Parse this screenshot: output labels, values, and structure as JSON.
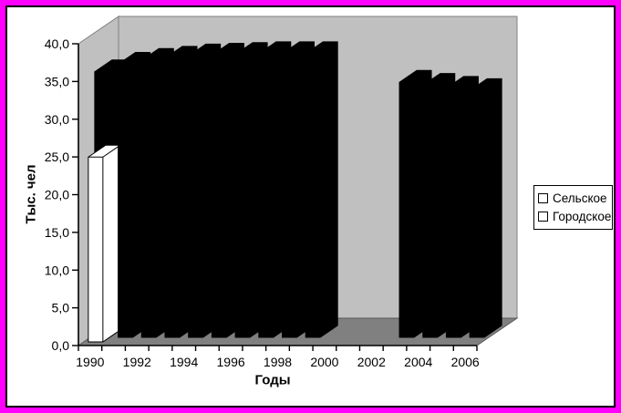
{
  "frame": {
    "border_color": "#FF00FF",
    "inner_line_color": "#000000"
  },
  "chart_data": {
    "type": "bar",
    "projection": "3d-column",
    "title": "",
    "xlabel": "Годы",
    "ylabel": "Тыс. чел",
    "ylim": [
      0,
      40
    ],
    "ytick_step": 5,
    "ytick_labels": [
      "0,0",
      "5,0",
      "10,0",
      "15,0",
      "20,0",
      "25,0",
      "30,0",
      "35,0",
      "40,0"
    ],
    "categories": [
      1990,
      1991,
      1992,
      1993,
      1994,
      1995,
      1996,
      1997,
      1998,
      1999,
      2000,
      2001,
      2002,
      2003,
      2004,
      2005,
      2006
    ],
    "xtick_labels_shown": [
      "1990",
      "1992",
      "1994",
      "1996",
      "1998",
      "2000",
      "2002",
      "2004",
      "2006"
    ],
    "grid": false,
    "legend_position": "right",
    "series": [
      {
        "name": "Сельское",
        "row": "front",
        "color": "#FFFFFF",
        "outline": "#000000",
        "values": [
          24.5,
          0,
          0,
          0,
          0,
          0,
          0,
          0,
          0,
          0,
          null,
          null,
          null,
          0,
          0,
          0,
          0
        ]
      },
      {
        "name": "Городское",
        "row": "back",
        "color": "#000000",
        "outline": "#000000",
        "values": [
          35.2,
          36.2,
          36.7,
          37.0,
          37.3,
          37.4,
          37.5,
          37.6,
          37.6,
          37.6,
          null,
          null,
          null,
          33.8,
          33.4,
          33.0,
          32.7
        ]
      }
    ],
    "colors": {
      "wall": "#C0C0C0",
      "wall_edge": "#808080",
      "floor": "#808080",
      "floor_edge": "#5A5A5A",
      "axis": "#000000",
      "text": "#000000"
    }
  },
  "legend": {
    "items": [
      {
        "label": "Сельское"
      },
      {
        "label": "Городское"
      }
    ]
  }
}
